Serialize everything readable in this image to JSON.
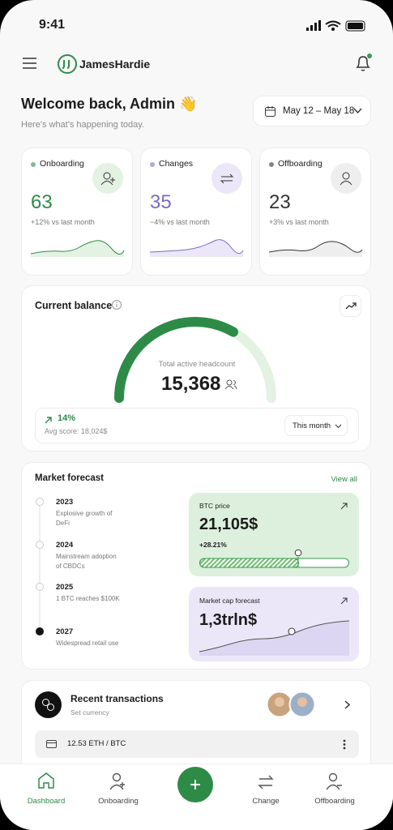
{
  "status_bar": {
    "time": "9:41"
  },
  "header": {
    "brand": "JamesHardie"
  },
  "welcome": {
    "title": "Welcome back, Admin 👋",
    "subtitle": "Here's what's happening today.",
    "date_range": "May 12 – May 18"
  },
  "stats": [
    {
      "label": "Onboarding",
      "value": "63",
      "change": "+12% vs last month"
    },
    {
      "label": "Changes",
      "value": "35",
      "change": "−4% vs last month"
    },
    {
      "label": "Offboarding",
      "value": "23",
      "change": "+3% vs last month"
    }
  ],
  "balance": {
    "title": "Current balance",
    "gauge_label": "Total active headcount",
    "gauge_value": "15,368",
    "change": "14%",
    "avg": "Avg score: 18,024$",
    "period": "This month"
  },
  "forecast": {
    "title": "Market forecast",
    "view_all": "View all",
    "timeline": [
      {
        "year": "2023",
        "text": "Explosive growth of DeFi"
      },
      {
        "year": "2024",
        "text": "Mainstream adoption of CBDCs"
      },
      {
        "year": "2025",
        "text": "1 BTC reaches $100K"
      },
      {
        "year": "2027",
        "text": "Widespread retail use"
      }
    ],
    "btc": {
      "label": "BTC price",
      "value": "21,105$",
      "change": "+28.21%"
    },
    "market_cap": {
      "label": "Market cap forecast",
      "value": "1,3trln$"
    }
  },
  "transactions": {
    "title": "Recent transactions",
    "subtitle": "Set currency",
    "row": "12.53 ETH / BTC"
  },
  "nav": [
    {
      "label": "Dashboard"
    },
    {
      "label": "Onboarding"
    },
    {
      "label": "Change"
    },
    {
      "label": "Offboarding"
    }
  ]
}
